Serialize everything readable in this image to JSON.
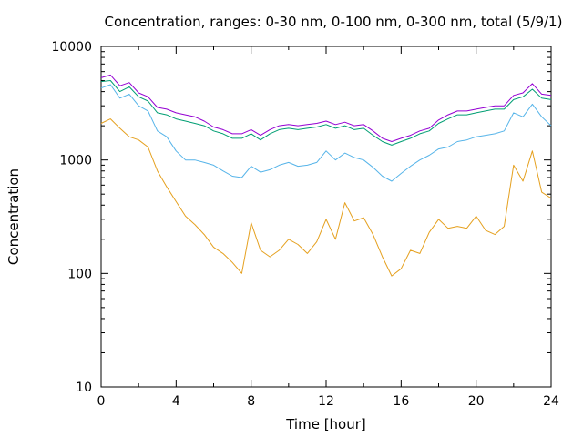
{
  "chart_data": {
    "type": "line",
    "title": "Concentration, ranges: 0-30 nm, 0-100 nm, 0-300 nm, total (5/9/1)",
    "xlabel": "Time [hour]",
    "ylabel": "Concentration",
    "xlim": [
      0,
      24
    ],
    "ylim": [
      10,
      10000
    ],
    "yscale": "log",
    "grid": false,
    "legend": "none",
    "xticks": [
      "0",
      "4",
      "8",
      "12",
      "16",
      "20",
      "24"
    ],
    "yticks": [
      "10",
      "100",
      "1000",
      "10000"
    ],
    "x": [
      0,
      0.5,
      1,
      1.5,
      2,
      2.5,
      3,
      3.5,
      4,
      4.5,
      5,
      5.5,
      6,
      6.5,
      7,
      7.5,
      8,
      8.5,
      9,
      9.5,
      10,
      10.5,
      11,
      11.5,
      12,
      12.5,
      13,
      13.5,
      14,
      14.5,
      15,
      15.5,
      16,
      16.5,
      17,
      17.5,
      18,
      18.5,
      19,
      19.5,
      20,
      20.5,
      21,
      21.5,
      22,
      22.5,
      23,
      23.5,
      24
    ],
    "series": [
      {
        "color": "#e5a01e",
        "values": [
          2100,
          2300,
          1900,
          1600,
          1500,
          1300,
          800,
          580,
          430,
          320,
          270,
          220,
          170,
          150,
          125,
          100,
          280,
          160,
          140,
          160,
          200,
          180,
          150,
          190,
          300,
          200,
          420,
          290,
          310,
          220,
          140,
          95,
          110,
          160,
          150,
          230,
          300,
          250,
          260,
          250,
          320,
          240,
          220,
          260,
          900,
          650,
          1200,
          520,
          460
        ]
      },
      {
        "color": "#56b4e9",
        "values": [
          4300,
          4600,
          3500,
          3800,
          3000,
          2700,
          1800,
          1600,
          1200,
          1000,
          1000,
          950,
          900,
          800,
          720,
          700,
          880,
          780,
          820,
          900,
          950,
          880,
          900,
          950,
          1200,
          1000,
          1150,
          1050,
          1000,
          860,
          720,
          650,
          760,
          880,
          1000,
          1100,
          1250,
          1300,
          1450,
          1500,
          1600,
          1650,
          1700,
          1800,
          2600,
          2400,
          3100,
          2400,
          2000
        ]
      },
      {
        "color": "#009e73",
        "values": [
          4900,
          5000,
          4000,
          4400,
          3600,
          3300,
          2600,
          2500,
          2300,
          2200,
          2100,
          2000,
          1800,
          1700,
          1550,
          1550,
          1700,
          1500,
          1700,
          1850,
          1900,
          1850,
          1900,
          1950,
          2050,
          1900,
          2000,
          1850,
          1900,
          1650,
          1450,
          1350,
          1450,
          1550,
          1700,
          1800,
          2100,
          2300,
          2500,
          2500,
          2600,
          2700,
          2800,
          2800,
          3400,
          3600,
          4200,
          3500,
          3400
        ]
      },
      {
        "color": "#9400d3",
        "values": [
          5300,
          5600,
          4500,
          4800,
          3900,
          3600,
          2900,
          2800,
          2600,
          2500,
          2400,
          2200,
          1950,
          1850,
          1700,
          1700,
          1850,
          1650,
          1850,
          2000,
          2050,
          2000,
          2050,
          2100,
          2200,
          2050,
          2150,
          2000,
          2050,
          1800,
          1550,
          1450,
          1550,
          1650,
          1800,
          1900,
          2250,
          2500,
          2700,
          2700,
          2800,
          2900,
          3000,
          3000,
          3700,
          3900,
          4700,
          3800,
          3700
        ]
      }
    ]
  }
}
